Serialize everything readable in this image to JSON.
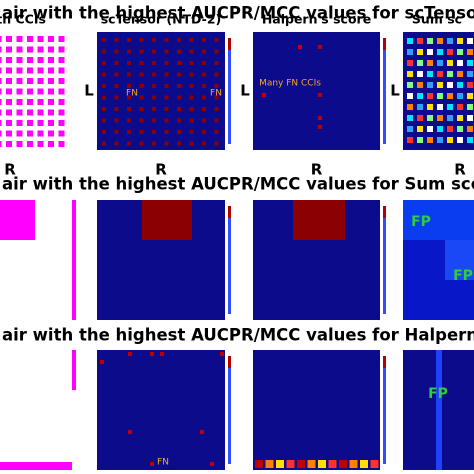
{
  "rows": [
    {
      "heading": "air with the highest AUCPR/MCC values for scTensor",
      "panels": [
        {
          "title": "Truth CCIs",
          "x_label": "R"
        },
        {
          "title": "scTensor (NTD-2)",
          "y_label": "L",
          "x_label": "R",
          "notes": [
            "FN",
            "FN"
          ]
        },
        {
          "title": "Halpern's score",
          "y_label": "L",
          "x_label": "R",
          "notes": [
            "Many FN CCIs"
          ]
        },
        {
          "title": "Sum sc",
          "y_label": "L",
          "x_label": "R"
        }
      ]
    },
    {
      "heading": "air with the highest AUCPR/MCC values for Sum scor",
      "panels": [
        {},
        {},
        {},
        {
          "notes": [
            "FP",
            "FP"
          ]
        }
      ]
    },
    {
      "heading": "air with the highest AUCPR/MCC values for Halpern's sco",
      "panels": [
        {},
        {
          "notes": [
            "FN"
          ]
        },
        {},
        {
          "notes": [
            "FP"
          ]
        }
      ]
    }
  ]
}
